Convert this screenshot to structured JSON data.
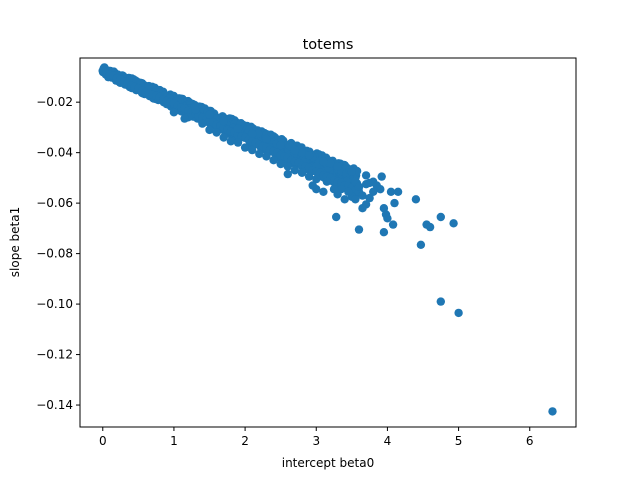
{
  "chart_data": {
    "type": "scatter",
    "title": "totems",
    "xlabel": "intercept beta0",
    "ylabel": "slope beta1",
    "xlim": [
      -0.32,
      6.65
    ],
    "ylim": [
      -0.1487,
      -0.0025
    ],
    "xticks": [
      {
        "value": 0,
        "label": "0"
      },
      {
        "value": 1,
        "label": "1"
      },
      {
        "value": 2,
        "label": "2"
      },
      {
        "value": 3,
        "label": "3"
      },
      {
        "value": 4,
        "label": "4"
      },
      {
        "value": 5,
        "label": "5"
      },
      {
        "value": 6,
        "label": "6"
      }
    ],
    "yticks": [
      {
        "value": -0.02,
        "label": "−0.02"
      },
      {
        "value": -0.04,
        "label": "−0.04"
      },
      {
        "value": -0.06,
        "label": "−0.06"
      },
      {
        "value": -0.08,
        "label": "−0.08"
      },
      {
        "value": -0.1,
        "label": "−0.10"
      },
      {
        "value": -0.12,
        "label": "−0.12"
      },
      {
        "value": -0.14,
        "label": "−0.14"
      }
    ],
    "grid": false,
    "marker_color": "#1f77b4",
    "dense_band": {
      "description_points": "main cluster of points along a line",
      "x_start": 0.0,
      "x_end": 3.6,
      "y_at_start": -0.0075,
      "slope_per_unit_x": -0.0123,
      "spread_y": 0.004
    },
    "points": [
      [
        0.0,
        -0.0075
      ],
      [
        0.05,
        -0.0085
      ],
      [
        0.1,
        -0.009
      ],
      [
        0.15,
        -0.0095
      ],
      [
        0.2,
        -0.0105
      ],
      [
        0.25,
        -0.011
      ],
      [
        0.3,
        -0.012
      ],
      [
        0.35,
        -0.0125
      ],
      [
        0.4,
        -0.0135
      ],
      [
        0.45,
        -0.014
      ],
      [
        0.5,
        -0.0145
      ],
      [
        0.55,
        -0.0155
      ],
      [
        0.6,
        -0.016
      ],
      [
        0.65,
        -0.0165
      ],
      [
        0.7,
        -0.017
      ],
      [
        0.75,
        -0.0175
      ],
      [
        0.8,
        -0.018
      ],
      [
        0.85,
        -0.019
      ],
      [
        0.9,
        -0.0195
      ],
      [
        0.95,
        -0.02
      ],
      [
        1.0,
        -0.0205
      ],
      [
        1.05,
        -0.0215
      ],
      [
        1.1,
        -0.022
      ],
      [
        1.15,
        -0.0225
      ],
      [
        1.2,
        -0.0235
      ],
      [
        1.25,
        -0.024
      ],
      [
        1.3,
        -0.0245
      ],
      [
        1.35,
        -0.0255
      ],
      [
        1.4,
        -0.026
      ],
      [
        1.45,
        -0.027
      ],
      [
        1.5,
        -0.0275
      ],
      [
        1.55,
        -0.028
      ],
      [
        1.6,
        -0.029
      ],
      [
        1.65,
        -0.0295
      ],
      [
        1.7,
        -0.03
      ],
      [
        1.75,
        -0.031
      ],
      [
        1.8,
        -0.0315
      ],
      [
        1.85,
        -0.032
      ],
      [
        1.9,
        -0.033
      ],
      [
        1.95,
        -0.0335
      ],
      [
        2.0,
        -0.034
      ],
      [
        2.05,
        -0.035
      ],
      [
        2.1,
        -0.0355
      ],
      [
        2.15,
        -0.036
      ],
      [
        2.2,
        -0.037
      ],
      [
        2.25,
        -0.0375
      ],
      [
        2.3,
        -0.038
      ],
      [
        2.35,
        -0.039
      ],
      [
        2.4,
        -0.0395
      ],
      [
        2.45,
        -0.04
      ],
      [
        2.5,
        -0.041
      ],
      [
        2.55,
        -0.0415
      ],
      [
        2.6,
        -0.042
      ],
      [
        2.65,
        -0.043
      ],
      [
        2.7,
        -0.0435
      ],
      [
        2.75,
        -0.044
      ],
      [
        2.8,
        -0.045
      ],
      [
        2.85,
        -0.0455
      ],
      [
        2.9,
        -0.046
      ],
      [
        2.95,
        -0.047
      ],
      [
        3.0,
        -0.0475
      ],
      [
        3.05,
        -0.048
      ],
      [
        3.1,
        -0.049
      ],
      [
        3.15,
        -0.0495
      ],
      [
        3.2,
        -0.05
      ],
      [
        3.25,
        -0.051
      ],
      [
        3.3,
        -0.0515
      ],
      [
        3.35,
        -0.052
      ],
      [
        3.4,
        -0.053
      ],
      [
        3.45,
        -0.0535
      ],
      [
        3.5,
        -0.054
      ],
      [
        3.55,
        -0.055
      ],
      [
        3.6,
        -0.0555
      ],
      [
        1.0,
        -0.024
      ],
      [
        1.2,
        -0.026
      ],
      [
        1.4,
        -0.0285
      ],
      [
        1.5,
        -0.031
      ],
      [
        1.6,
        -0.032
      ],
      [
        1.7,
        -0.034
      ],
      [
        1.8,
        -0.0355
      ],
      [
        1.9,
        -0.036
      ],
      [
        2.0,
        -0.038
      ],
      [
        2.1,
        -0.039
      ],
      [
        2.2,
        -0.0405
      ],
      [
        2.3,
        -0.0415
      ],
      [
        2.4,
        -0.043
      ],
      [
        2.5,
        -0.0445
      ],
      [
        2.6,
        -0.0455
      ],
      [
        2.7,
        -0.047
      ],
      [
        2.8,
        -0.048
      ],
      [
        2.9,
        -0.0495
      ],
      [
        3.0,
        -0.0505
      ],
      [
        1.3,
        -0.023
      ],
      [
        1.5,
        -0.025
      ],
      [
        1.7,
        -0.0275
      ],
      [
        1.9,
        -0.0305
      ],
      [
        2.1,
        -0.0325
      ],
      [
        2.3,
        -0.0345
      ],
      [
        2.5,
        -0.037
      ],
      [
        2.7,
        -0.039
      ],
      [
        2.9,
        -0.041
      ],
      [
        3.1,
        -0.0435
      ],
      [
        3.3,
        -0.0455
      ],
      [
        3.5,
        -0.0475
      ],
      [
        3.7,
        -0.049
      ],
      [
        1.15,
        -0.0265
      ],
      [
        2.6,
        -0.0485
      ],
      [
        3.15,
        -0.0515
      ],
      [
        3.35,
        -0.0545
      ],
      [
        3.5,
        -0.0575
      ],
      [
        3.3,
        -0.0565
      ],
      [
        3.45,
        -0.0555
      ],
      [
        3.55,
        -0.0515
      ],
      [
        3.6,
        -0.0535
      ],
      [
        3.7,
        -0.0525
      ],
      [
        3.75,
        -0.052
      ],
      [
        3.8,
        -0.0515
      ],
      [
        3.85,
        -0.053
      ],
      [
        3.25,
        -0.0545
      ],
      [
        3.1,
        -0.0555
      ],
      [
        3.0,
        -0.0545
      ],
      [
        2.95,
        -0.053
      ],
      [
        3.4,
        -0.0585
      ],
      [
        3.55,
        -0.0585
      ],
      [
        3.65,
        -0.057
      ],
      [
        3.7,
        -0.0605
      ],
      [
        3.65,
        -0.062
      ],
      [
        3.75,
        -0.058
      ],
      [
        3.8,
        -0.0555
      ],
      [
        3.9,
        -0.0545
      ],
      [
        4.05,
        -0.0555
      ],
      [
        3.95,
        -0.062
      ],
      [
        3.98,
        -0.0645
      ],
      [
        4.0,
        -0.066
      ],
      [
        4.1,
        -0.06
      ],
      [
        4.15,
        -0.0555
      ],
      [
        3.92,
        -0.0495
      ],
      [
        3.28,
        -0.0655
      ],
      [
        3.6,
        -0.0705
      ],
      [
        3.95,
        -0.0715
      ],
      [
        4.08,
        -0.0685
      ],
      [
        4.4,
        -0.0585
      ],
      [
        4.55,
        -0.0685
      ],
      [
        4.6,
        -0.0695
      ],
      [
        4.75,
        -0.0655
      ],
      [
        4.93,
        -0.068
      ],
      [
        4.47,
        -0.0765
      ],
      [
        4.75,
        -0.099
      ],
      [
        5.0,
        -0.1035
      ],
      [
        6.32,
        -0.1425
      ]
    ]
  }
}
